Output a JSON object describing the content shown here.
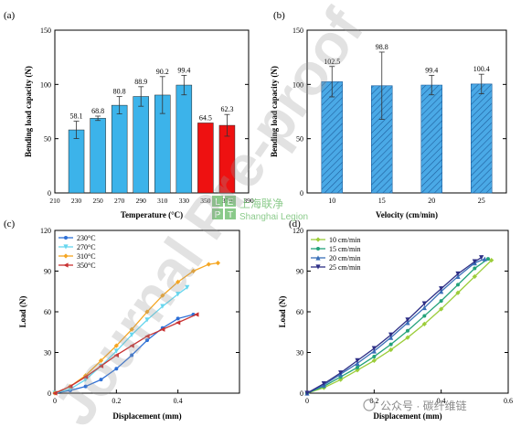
{
  "chart_data": [
    {
      "panel": "(a)",
      "type": "bar",
      "ylabel": "Bending load capacity (N)",
      "xlabel": "Temperature (°C)",
      "ylim": [
        0,
        150
      ],
      "yticks": [
        0,
        50,
        100,
        150
      ],
      "xlim": [
        210,
        390
      ],
      "xticks": [
        210,
        230,
        250,
        270,
        290,
        310,
        330,
        350,
        370,
        390
      ],
      "x": [
        230,
        250,
        270,
        290,
        310,
        330,
        350,
        370
      ],
      "values": [
        58.1,
        68.8,
        80.8,
        88.9,
        90.2,
        99.4,
        64.5,
        62.3
      ],
      "labels": [
        "58.1",
        "68.8",
        "80.8",
        "88.9",
        "90.2",
        "99.4",
        "64.5",
        "62.3"
      ],
      "errors": [
        8,
        2,
        8,
        9,
        17,
        9,
        0,
        10
      ],
      "colors": [
        "#3cb3ea",
        "#3cb3ea",
        "#3cb3ea",
        "#3cb3ea",
        "#3cb3ea",
        "#3cb3ea",
        "#ee1111",
        "#ee1111"
      ]
    },
    {
      "panel": "(b)",
      "type": "bar",
      "ylabel": "Bending load capacity (N)",
      "xlabel": "Velocity (cm/min)",
      "ylim": [
        0,
        150
      ],
      "yticks": [
        0,
        50,
        100,
        150
      ],
      "categories": [
        "10",
        "15",
        "20",
        "25"
      ],
      "values": [
        102.5,
        98.8,
        99.4,
        100.4
      ],
      "labels": [
        "102.5",
        "98.8",
        "99.4",
        "100.4"
      ],
      "errors": [
        14,
        31,
        9,
        9
      ],
      "fill": "#4aa9e6",
      "hatch": "diagonal"
    },
    {
      "panel": "(c)",
      "type": "line",
      "ylabel": "Load (N)",
      "xlabel": "Displacement (mm)",
      "xlim": [
        0,
        0.6
      ],
      "ylim": [
        0,
        120
      ],
      "xticks": [
        0,
        0.2,
        0.4
      ],
      "xticklabels": [
        "0",
        "0.2",
        "0.4"
      ],
      "yticks": [
        0,
        30,
        60,
        90,
        120
      ],
      "series": [
        {
          "name": "230°C",
          "color": "#2d6fd6",
          "marker": "circle",
          "x": [
            0,
            0.05,
            0.1,
            0.15,
            0.2,
            0.25,
            0.3,
            0.35,
            0.4,
            0.45
          ],
          "y": [
            0,
            2,
            5,
            10,
            18,
            28,
            39,
            48,
            55,
            58
          ]
        },
        {
          "name": "270°C",
          "color": "#66d6ee",
          "marker": "triangle-down",
          "x": [
            0,
            0.05,
            0.1,
            0.15,
            0.2,
            0.25,
            0.3,
            0.35,
            0.4,
            0.43
          ],
          "y": [
            0,
            3,
            10,
            20,
            31,
            43,
            54,
            64,
            73,
            78
          ]
        },
        {
          "name": "310°C",
          "color": "#f5a623",
          "marker": "diamond",
          "x": [
            0,
            0.05,
            0.1,
            0.15,
            0.2,
            0.25,
            0.3,
            0.35,
            0.4,
            0.45,
            0.5,
            0.53
          ],
          "y": [
            0,
            5,
            13,
            24,
            35,
            47,
            60,
            72,
            82,
            90,
            95,
            96
          ]
        },
        {
          "name": "350°C",
          "color": "#c83232",
          "marker": "triangle-left",
          "x": [
            0,
            0.05,
            0.1,
            0.15,
            0.2,
            0.25,
            0.3,
            0.35,
            0.4,
            0.46
          ],
          "y": [
            0,
            5,
            12,
            20,
            28,
            35,
            42,
            47,
            52,
            58
          ]
        }
      ]
    },
    {
      "panel": "(d)",
      "type": "line",
      "ylabel": "Load (N)",
      "xlabel": "Displacement (mm)",
      "xlim": [
        0,
        0.6
      ],
      "ylim": [
        0,
        120
      ],
      "xticks": [
        0,
        0.2,
        0.4,
        0.6
      ],
      "xticklabels": [
        "0",
        "0.2",
        "0.4",
        "0.6"
      ],
      "yticks": [
        0,
        30,
        60,
        90,
        120
      ],
      "series": [
        {
          "name": "10 cm/min",
          "color": "#9ccd3a",
          "marker": "diamond",
          "x": [
            0,
            0.05,
            0.1,
            0.15,
            0.2,
            0.25,
            0.3,
            0.35,
            0.4,
            0.45,
            0.5,
            0.55
          ],
          "y": [
            0,
            4,
            10,
            17,
            24,
            32,
            41,
            51,
            62,
            74,
            86,
            98
          ]
        },
        {
          "name": "15 cm/min",
          "color": "#23a27a",
          "marker": "circle",
          "x": [
            0,
            0.05,
            0.1,
            0.15,
            0.2,
            0.25,
            0.3,
            0.35,
            0.4,
            0.45,
            0.5,
            0.54
          ],
          "y": [
            0,
            5,
            12,
            19,
            27,
            36,
            46,
            57,
            68,
            80,
            92,
            99
          ]
        },
        {
          "name": "20 cm/min",
          "color": "#3a6fb8",
          "marker": "triangle-up",
          "x": [
            0,
            0.05,
            0.1,
            0.15,
            0.2,
            0.25,
            0.3,
            0.35,
            0.4,
            0.45,
            0.5,
            0.53
          ],
          "y": [
            0,
            6,
            14,
            22,
            31,
            41,
            52,
            63,
            75,
            86,
            96,
            99
          ]
        },
        {
          "name": "25 cm/min",
          "color": "#2e2f86",
          "marker": "triangle-down",
          "x": [
            0,
            0.05,
            0.1,
            0.15,
            0.2,
            0.25,
            0.3,
            0.35,
            0.4,
            0.45,
            0.5,
            0.52
          ],
          "y": [
            0,
            7,
            15,
            24,
            33,
            43,
            54,
            66,
            77,
            88,
            97,
            100
          ]
        }
      ]
    }
  ],
  "watermarks": {
    "logo_letters": [
      "L",
      "E",
      "P",
      "T"
    ],
    "logo_cn": "上海联净",
    "logo_en": "Shanghai Legion",
    "diagonal": "Journal Pre-proof",
    "wechat": "公众号 · 碳纤维链"
  }
}
